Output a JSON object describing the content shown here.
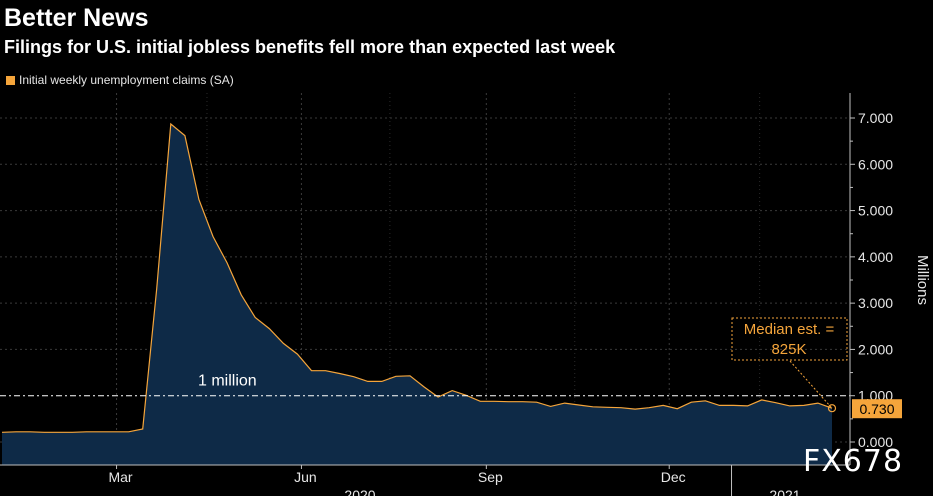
{
  "header": {
    "title": "Better News",
    "subtitle": "Filings for U.S. initial jobless benefits fell more than expected last week"
  },
  "watermark": "FX678",
  "chart_data": {
    "type": "area",
    "legend": [
      {
        "label": "Initial weekly unemployment claims (SA)",
        "color": "#f5a53b"
      }
    ],
    "ylabel": "Millions",
    "ylim": [
      0,
      7.5
    ],
    "yticks": [
      0,
      1,
      2,
      3,
      4,
      5,
      6,
      7
    ],
    "ytick_labels": [
      "0.000",
      "1.000",
      "2.000",
      "3.000",
      "4.000",
      "5.000",
      "6.000",
      "7.000"
    ],
    "x_tick_labels": [
      "Mar",
      "Jun",
      "Sep",
      "Dec"
    ],
    "year_labels": [
      "2020",
      "2021"
    ],
    "series": [
      {
        "name": "Initial weekly unemployment claims (SA)",
        "color": "#f5a53b",
        "x": [
          "2020-01-04",
          "2020-01-11",
          "2020-01-18",
          "2020-01-25",
          "2020-02-01",
          "2020-02-08",
          "2020-02-15",
          "2020-02-22",
          "2020-02-29",
          "2020-03-07",
          "2020-03-14",
          "2020-03-21",
          "2020-03-28",
          "2020-04-04",
          "2020-04-11",
          "2020-04-18",
          "2020-04-25",
          "2020-05-02",
          "2020-05-09",
          "2020-05-16",
          "2020-05-23",
          "2020-05-30",
          "2020-06-06",
          "2020-06-13",
          "2020-06-20",
          "2020-06-27",
          "2020-07-04",
          "2020-07-11",
          "2020-07-18",
          "2020-07-25",
          "2020-08-01",
          "2020-08-08",
          "2020-08-15",
          "2020-08-22",
          "2020-08-29",
          "2020-09-05",
          "2020-09-12",
          "2020-09-19",
          "2020-09-26",
          "2020-10-03",
          "2020-10-10",
          "2020-10-17",
          "2020-10-24",
          "2020-10-31",
          "2020-11-07",
          "2020-11-14",
          "2020-11-21",
          "2020-11-28",
          "2020-12-05",
          "2020-12-12",
          "2020-12-19",
          "2020-12-26",
          "2021-01-02",
          "2021-01-09",
          "2021-01-16",
          "2021-01-23",
          "2021-01-30",
          "2021-02-06",
          "2021-02-13",
          "2021-02-20"
        ],
        "values": [
          0.21,
          0.22,
          0.22,
          0.21,
          0.21,
          0.21,
          0.22,
          0.22,
          0.22,
          0.22,
          0.28,
          3.31,
          6.87,
          6.62,
          5.24,
          4.44,
          3.87,
          3.18,
          2.69,
          2.45,
          2.13,
          1.9,
          1.54,
          1.54,
          1.48,
          1.41,
          1.31,
          1.31,
          1.42,
          1.43,
          1.19,
          0.97,
          1.11,
          1.01,
          0.88,
          0.88,
          0.87,
          0.87,
          0.86,
          0.77,
          0.84,
          0.8,
          0.76,
          0.75,
          0.74,
          0.71,
          0.74,
          0.79,
          0.72,
          0.86,
          0.89,
          0.79,
          0.79,
          0.78,
          0.91,
          0.85,
          0.78,
          0.79,
          0.84,
          0.73
        ]
      }
    ],
    "reference_line": {
      "value": 1.0,
      "label": "1 million"
    },
    "last_value_label": "0.730",
    "annotation": {
      "text_line1": "Median est. =",
      "text_line2": "825K"
    },
    "grid": true
  }
}
